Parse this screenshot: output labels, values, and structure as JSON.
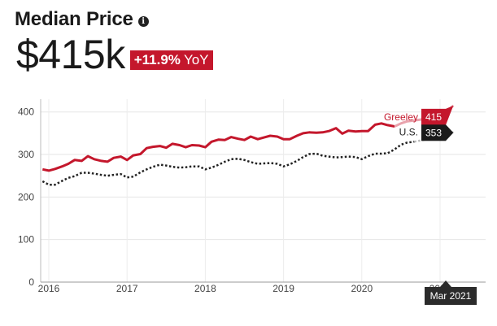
{
  "header": {
    "title": "Median Price",
    "info_icon": "info-icon",
    "price": "$415k",
    "yoy_value": "+11.9%",
    "yoy_label": "YoY"
  },
  "colors": {
    "greeley": "#c4172c",
    "us": "#222222",
    "us_tag_bg": "#1a1a1a",
    "tooltip_bg": "#2b2b2b"
  },
  "tooltip": {
    "label": "Mar 2021"
  },
  "chart_data": {
    "type": "line",
    "x_unit": "year",
    "xlim": [
      2015.92,
      2021.5
    ],
    "ylim": [
      0,
      430
    ],
    "yticks": [
      0,
      100,
      200,
      300,
      400
    ],
    "xticks": [
      {
        "value": 2016,
        "label": "2016"
      },
      {
        "value": 2017,
        "label": "2017"
      },
      {
        "value": 2018,
        "label": "2018"
      },
      {
        "value": 2019,
        "label": "2019"
      },
      {
        "value": 2020,
        "label": "2020"
      },
      {
        "value": 2021,
        "label": "2021"
      }
    ],
    "grid": true,
    "series": [
      {
        "name": "Greeley",
        "end_label": "415",
        "style": "solid",
        "points": [
          [
            2015.92,
            265
          ],
          [
            2016.0,
            262
          ],
          [
            2016.08,
            266
          ],
          [
            2016.17,
            272
          ],
          [
            2016.25,
            278
          ],
          [
            2016.33,
            287
          ],
          [
            2016.42,
            285
          ],
          [
            2016.5,
            296
          ],
          [
            2016.58,
            289
          ],
          [
            2016.67,
            285
          ],
          [
            2016.75,
            283
          ],
          [
            2016.83,
            292
          ],
          [
            2016.92,
            295
          ],
          [
            2017.0,
            287
          ],
          [
            2017.08,
            298
          ],
          [
            2017.17,
            301
          ],
          [
            2017.25,
            315
          ],
          [
            2017.33,
            318
          ],
          [
            2017.42,
            320
          ],
          [
            2017.5,
            316
          ],
          [
            2017.58,
            325
          ],
          [
            2017.67,
            322
          ],
          [
            2017.75,
            317
          ],
          [
            2017.83,
            322
          ],
          [
            2017.92,
            321
          ],
          [
            2018.0,
            317
          ],
          [
            2018.08,
            330
          ],
          [
            2018.17,
            335
          ],
          [
            2018.25,
            334
          ],
          [
            2018.33,
            341
          ],
          [
            2018.42,
            337
          ],
          [
            2018.5,
            334
          ],
          [
            2018.58,
            342
          ],
          [
            2018.67,
            336
          ],
          [
            2018.75,
            340
          ],
          [
            2018.83,
            344
          ],
          [
            2018.92,
            342
          ],
          [
            2019.0,
            336
          ],
          [
            2019.08,
            336
          ],
          [
            2019.17,
            344
          ],
          [
            2019.25,
            350
          ],
          [
            2019.33,
            352
          ],
          [
            2019.42,
            351
          ],
          [
            2019.5,
            352
          ],
          [
            2019.58,
            355
          ],
          [
            2019.67,
            362
          ],
          [
            2019.75,
            349
          ],
          [
            2019.83,
            356
          ],
          [
            2019.92,
            354
          ],
          [
            2020.0,
            355
          ],
          [
            2020.08,
            355
          ],
          [
            2020.17,
            370
          ],
          [
            2020.25,
            373
          ],
          [
            2020.33,
            369
          ],
          [
            2020.42,
            366
          ],
          [
            2020.5,
            373
          ],
          [
            2020.58,
            378
          ],
          [
            2020.67,
            380
          ],
          [
            2020.75,
            382
          ],
          [
            2020.83,
            385
          ],
          [
            2020.92,
            387
          ],
          [
            2021.0,
            390
          ],
          [
            2021.08,
            400
          ],
          [
            2021.17,
            415
          ]
        ]
      },
      {
        "name": "U.S.",
        "end_label": "353",
        "style": "dotted",
        "points": [
          [
            2015.92,
            237
          ],
          [
            2016.0,
            229
          ],
          [
            2016.08,
            229
          ],
          [
            2016.17,
            238
          ],
          [
            2016.25,
            245
          ],
          [
            2016.33,
            249
          ],
          [
            2016.42,
            257
          ],
          [
            2016.5,
            257
          ],
          [
            2016.58,
            255
          ],
          [
            2016.67,
            252
          ],
          [
            2016.75,
            250
          ],
          [
            2016.83,
            252
          ],
          [
            2016.92,
            254
          ],
          [
            2017.0,
            246
          ],
          [
            2017.08,
            248
          ],
          [
            2017.17,
            258
          ],
          [
            2017.25,
            265
          ],
          [
            2017.33,
            271
          ],
          [
            2017.42,
            276
          ],
          [
            2017.5,
            274
          ],
          [
            2017.58,
            271
          ],
          [
            2017.67,
            269
          ],
          [
            2017.75,
            270
          ],
          [
            2017.83,
            272
          ],
          [
            2017.92,
            272
          ],
          [
            2018.0,
            265
          ],
          [
            2018.08,
            269
          ],
          [
            2018.17,
            276
          ],
          [
            2018.25,
            283
          ],
          [
            2018.33,
            289
          ],
          [
            2018.42,
            290
          ],
          [
            2018.5,
            287
          ],
          [
            2018.58,
            282
          ],
          [
            2018.67,
            278
          ],
          [
            2018.75,
            279
          ],
          [
            2018.83,
            280
          ],
          [
            2018.92,
            278
          ],
          [
            2019.0,
            272
          ],
          [
            2019.08,
            277
          ],
          [
            2019.17,
            285
          ],
          [
            2019.25,
            294
          ],
          [
            2019.33,
            301
          ],
          [
            2019.42,
            302
          ],
          [
            2019.5,
            297
          ],
          [
            2019.58,
            295
          ],
          [
            2019.67,
            293
          ],
          [
            2019.75,
            294
          ],
          [
            2019.83,
            295
          ],
          [
            2019.92,
            294
          ],
          [
            2020.0,
            289
          ],
          [
            2020.08,
            296
          ],
          [
            2020.17,
            302
          ],
          [
            2020.25,
            302
          ],
          [
            2020.33,
            303
          ],
          [
            2020.42,
            312
          ],
          [
            2020.5,
            323
          ],
          [
            2020.58,
            328
          ],
          [
            2020.67,
            330
          ],
          [
            2020.75,
            333
          ],
          [
            2020.83,
            335
          ],
          [
            2020.92,
            336
          ],
          [
            2021.0,
            336
          ],
          [
            2021.08,
            345
          ],
          [
            2021.17,
            353
          ]
        ]
      }
    ]
  }
}
